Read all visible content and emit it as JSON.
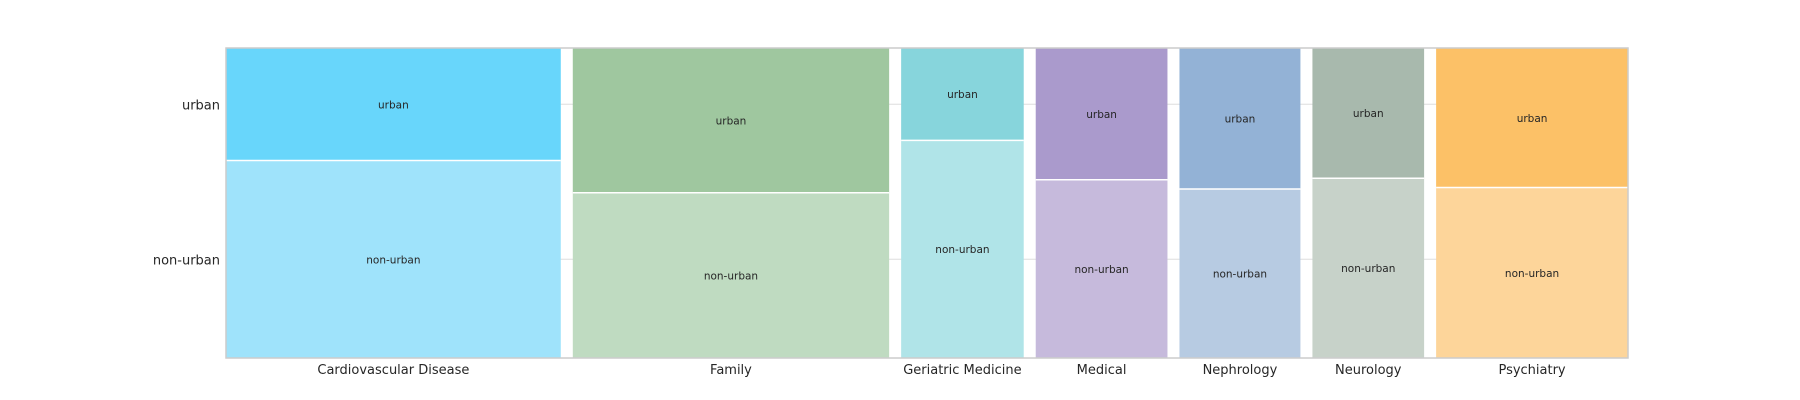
{
  "chart_data": {
    "type": "mosaic",
    "x_categories": [
      "Cardiovascular Disease",
      "Family",
      "Geriatric Medicine",
      "Medical",
      "Nephrology",
      "Neurology",
      "Psychiatry"
    ],
    "y_categories": [
      "urban",
      "non-urban"
    ],
    "x_shares": [
      0.2488,
      0.2351,
      0.0911,
      0.0979,
      0.0899,
      0.083,
      0.1426
    ],
    "urban_fraction": [
      0.363,
      0.467,
      0.298,
      0.425,
      0.455,
      0.42,
      0.45
    ],
    "colors": {
      "urban": [
        "#68d6fb",
        "#9fc79f",
        "#87d5dc",
        "#aa9acc",
        "#93b2d6",
        "#a8b9ad",
        "#fcc167"
      ],
      "non-urban": [
        "#9fe3fb",
        "#bfdbc1",
        "#b0e4e8",
        "#c6badc",
        "#b7cbe2",
        "#c7d2c9",
        "#fdd59a"
      ]
    },
    "cell_labels": [
      "urban",
      "non-urban"
    ],
    "grid": true,
    "grid_color": "#dddddd",
    "title": "",
    "xlabel": "",
    "ylabel": ""
  }
}
